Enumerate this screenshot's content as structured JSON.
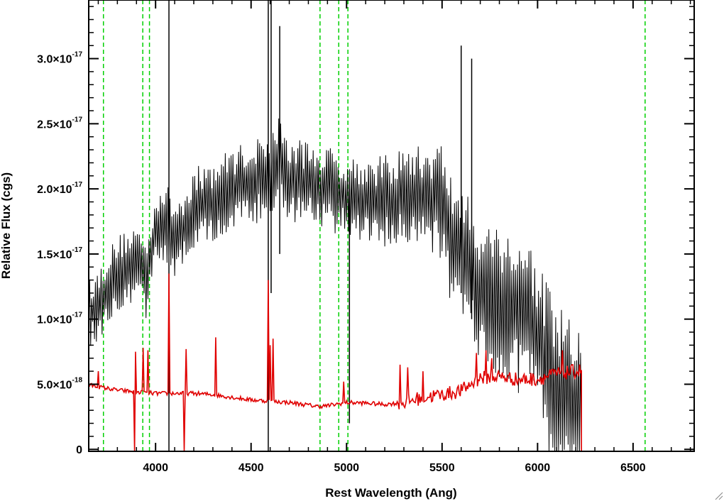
{
  "chart_data": {
    "type": "line",
    "xlabel": "Rest Wavelength (Ang)",
    "ylabel": "Relative Flux (cgs)",
    "xlim": [
      3650,
      6820
    ],
    "ylim": [
      -1.5e-19,
      3.45e-17
    ],
    "x_ticks": [
      {
        "value": 4000,
        "label": "4000"
      },
      {
        "value": 4500,
        "label": "4500"
      },
      {
        "value": 5000,
        "label": "5000"
      },
      {
        "value": 5500,
        "label": "5500"
      },
      {
        "value": 6000,
        "label": "6000"
      },
      {
        "value": 6500,
        "label": "6500"
      }
    ],
    "y_ticks": [
      {
        "value": 0,
        "mantissa": "0",
        "exponent": ""
      },
      {
        "value": 5e-18,
        "mantissa": "5.0×10",
        "exponent": "-18"
      },
      {
        "value": 1e-17,
        "mantissa": "1.0×10",
        "exponent": "-17"
      },
      {
        "value": 1.5e-17,
        "mantissa": "1.5×10",
        "exponent": "-17"
      },
      {
        "value": 2e-17,
        "mantissa": "2.0×10",
        "exponent": "-17"
      },
      {
        "value": 2.5e-17,
        "mantissa": "2.5×10",
        "exponent": "-17"
      },
      {
        "value": 3e-17,
        "mantissa": "3.0×10",
        "exponent": "-17"
      }
    ],
    "grid": false,
    "legend": "none",
    "series": [
      {
        "role": "spectrum-flux",
        "color": "#000000",
        "style": "solid",
        "x_start": 3650,
        "x_end": 6230,
        "x_step": 5,
        "sampled_envelope": {
          "x": [
            3650,
            3700,
            3750,
            3800,
            3900,
            3950,
            4000,
            4050,
            4100,
            4150,
            4200,
            4300,
            4400,
            4500,
            4600,
            4650,
            4700,
            4800,
            4900,
            5000,
            5100,
            5200,
            5300,
            5400,
            5500,
            5550,
            5600,
            5650,
            5700,
            5750,
            5800,
            5850,
            5900,
            5950,
            6000,
            6050,
            6100,
            6150,
            6200,
            6230
          ],
          "y": [
            1.05e-17,
            1.1e-17,
            1.25e-17,
            1.35e-17,
            1.45e-17,
            1.3e-17,
            1.7e-17,
            1.75e-17,
            1.6e-17,
            1.7e-17,
            1.85e-17,
            1.9e-17,
            2e-17,
            2.05e-17,
            2.1e-17,
            2.25e-17,
            2.05e-17,
            2.05e-17,
            2e-17,
            1.95e-17,
            1.9e-17,
            1.9e-17,
            1.95e-17,
            1.95e-17,
            1.9e-17,
            1.6e-17,
            1.5e-17,
            1.35e-17,
            1.25e-17,
            1.2e-17,
            1.15e-17,
            1.1e-17,
            1.05e-17,
            1e-17,
            8.5e-18,
            6e-18,
            4.5e-18,
            3.5e-18,
            3e-18,
            2.5e-18
          ]
        },
        "scatter_amplitude": {
          "x": [
            3650,
            4000,
            4500,
            5000,
            5400,
            5600,
            5800,
            6000,
            6230
          ],
          "y": [
            2.5e-18,
            2.8e-18,
            3e-18,
            3e-18,
            3.5e-18,
            5e-18,
            5.5e-18,
            6e-18,
            6.5e-18
          ]
        },
        "spikes": [
          {
            "x": 4070,
            "y_low": -1.5e-19,
            "y_high": 3.45e-17
          },
          {
            "x": 4590,
            "y_low": -1.5e-19,
            "y_high": 3.45e-17
          },
          {
            "x": 4605,
            "y_low": 1.2e-17,
            "y_high": 3.45e-17
          },
          {
            "x": 4650,
            "y_low": 1.5e-17,
            "y_high": 3.25e-17
          },
          {
            "x": 5015,
            "y_low": 2e-18,
            "y_high": 2e-17
          },
          {
            "x": 5600,
            "y_low": 1.2e-17,
            "y_high": 3.1e-17
          },
          {
            "x": 5655,
            "y_low": 1e-17,
            "y_high": 3e-17
          }
        ]
      },
      {
        "role": "error-spectrum",
        "color": "#e00000",
        "style": "solid",
        "x_start": 3650,
        "x_end": 6230,
        "x_step": 5,
        "continuum": {
          "x": [
            3650,
            3700,
            3800,
            3900,
            4000,
            4100,
            4200,
            4300,
            4400,
            4500,
            4600,
            4700,
            4800,
            4850,
            4900,
            5000,
            5100,
            5200,
            5300,
            5400,
            5500,
            5600,
            5650,
            5700,
            5800,
            5900,
            6000,
            6050,
            6100,
            6200,
            6230
          ],
          "y": [
            4.95e-18,
            4.8e-18,
            4.55e-18,
            4.4e-18,
            4.3e-18,
            4.3e-18,
            4.3e-18,
            4.2e-18,
            4e-18,
            3.8e-18,
            3.7e-18,
            3.6e-18,
            3.4e-18,
            3.3e-18,
            3.35e-18,
            3.6e-18,
            3.55e-18,
            3.45e-18,
            3.6e-18,
            4e-18,
            4.2e-18,
            4.5e-18,
            5e-18,
            5.5e-18,
            5.6e-18,
            5.35e-18,
            5.4e-18,
            5.6e-18,
            5.8e-18,
            6e-18,
            6.1e-18
          ]
        },
        "excursions": [
          {
            "x": 3700,
            "y": 6e-18
          },
          {
            "x": 3890,
            "y": -1.5e-19
          },
          {
            "x": 3895,
            "y": 7.5e-18
          },
          {
            "x": 3935,
            "y": 7.8e-18
          },
          {
            "x": 3960,
            "y": 7.6e-18
          },
          {
            "x": 4070,
            "y": 1.35e-17
          },
          {
            "x": 4150,
            "y": -1.5e-19
          },
          {
            "x": 4160,
            "y": 7.7e-18
          },
          {
            "x": 4315,
            "y": 8.6e-18
          },
          {
            "x": 4590,
            "y": 1.3e-17
          },
          {
            "x": 4600,
            "y": 8e-18
          },
          {
            "x": 4615,
            "y": 8.5e-18
          },
          {
            "x": 4985,
            "y": 5.2e-18
          },
          {
            "x": 5280,
            "y": 6.5e-18
          },
          {
            "x": 5320,
            "y": 6.3e-18
          },
          {
            "x": 5400,
            "y": 6e-18
          },
          {
            "x": 5680,
            "y": 7.4e-18
          },
          {
            "x": 5730,
            "y": 7.6e-18
          },
          {
            "x": 5760,
            "y": 7e-18
          },
          {
            "x": 6130,
            "y": 7.6e-18
          }
        ],
        "flat_after": {
          "x_start": 6230,
          "x_end": 6820,
          "y": -1.5e-19
        }
      }
    ],
    "vertical_lines": {
      "color": "#00d000",
      "style": "dashed",
      "x": [
        3727,
        3933,
        3968,
        4861,
        4959,
        5007,
        6563
      ]
    }
  }
}
